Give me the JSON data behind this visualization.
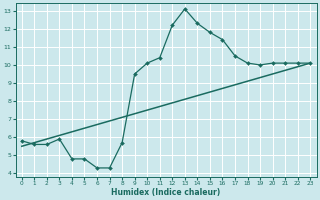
{
  "xlabel": "Humidex (Indice chaleur)",
  "ylabel": "",
  "bg_color": "#cce8ec",
  "line_color": "#1a6b60",
  "grid_color": "#ffffff",
  "xlim": [
    -0.5,
    23.5
  ],
  "ylim": [
    3.8,
    13.4
  ],
  "xticks": [
    0,
    1,
    2,
    3,
    4,
    5,
    6,
    7,
    8,
    9,
    10,
    11,
    12,
    13,
    14,
    15,
    16,
    17,
    18,
    19,
    20,
    21,
    22,
    23
  ],
  "yticks": [
    4,
    5,
    6,
    7,
    8,
    9,
    10,
    11,
    12,
    13
  ],
  "curve_x": [
    0,
    1,
    2,
    3,
    4,
    5,
    6,
    7,
    8,
    9,
    10,
    11,
    12,
    13,
    14,
    15,
    16,
    17,
    18,
    19,
    20,
    21,
    22,
    23
  ],
  "curve_y": [
    5.8,
    5.6,
    5.6,
    5.9,
    4.8,
    4.8,
    4.3,
    4.3,
    5.7,
    9.5,
    10.1,
    10.4,
    12.2,
    13.1,
    12.3,
    11.8,
    11.4,
    10.5,
    10.1,
    10.0,
    10.1,
    10.1,
    10.1,
    10.1
  ],
  "line_x": [
    0,
    23
  ],
  "line_y": [
    5.5,
    10.1
  ]
}
